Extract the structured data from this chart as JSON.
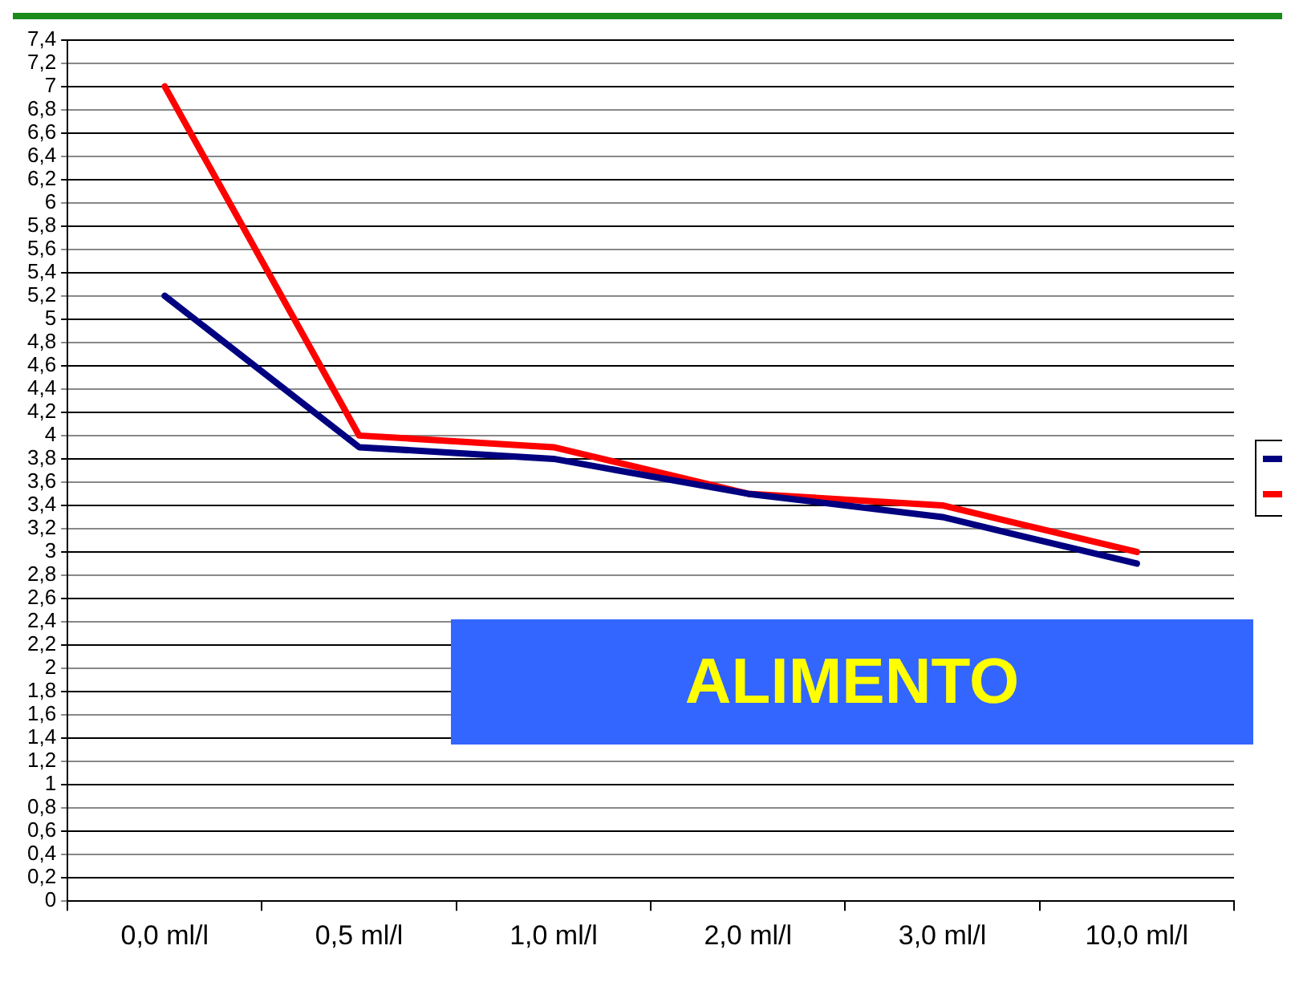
{
  "chart_data": {
    "type": "line",
    "categories": [
      "0,0 ml/l",
      "0,5 ml/l",
      "1,0 ml/l",
      "2,0 ml/l",
      "3,0 ml/l",
      "10,0 ml/l"
    ],
    "series": [
      {
        "color": "#000080",
        "values": [
          5.2,
          3.9,
          3.8,
          3.5,
          3.3,
          2.9
        ]
      },
      {
        "color": "#ff0000",
        "values": [
          7.0,
          4.0,
          3.9,
          3.5,
          3.4,
          3.0
        ]
      }
    ],
    "ylim": [
      0,
      7.4
    ],
    "yticks": [
      0,
      {
        "value": 0.2,
        "label": "0,2"
      },
      {
        "value": 0.4,
        "label": "0,4"
      },
      {
        "value": 0.6,
        "label": "0,6"
      },
      {
        "value": 0.8,
        "label": "0,8"
      },
      1,
      {
        "value": 1.2,
        "label": "1,2"
      },
      {
        "value": 1.4,
        "label": "1,4"
      },
      {
        "value": 1.6,
        "label": "1,6"
      },
      {
        "value": 1.8,
        "label": "1,8"
      },
      2,
      {
        "value": 2.2,
        "label": "2,2"
      },
      {
        "value": 2.4,
        "label": "2,4"
      },
      {
        "value": 2.6,
        "label": "2,6"
      },
      {
        "value": 2.8,
        "label": "2,8"
      },
      3,
      {
        "value": 3.2,
        "label": "3,2"
      },
      {
        "value": 3.4,
        "label": "3,4"
      },
      {
        "value": 3.6,
        "label": "3,6"
      },
      {
        "value": 3.8,
        "label": "3,8"
      },
      4,
      {
        "value": 4.2,
        "label": "4,2"
      },
      {
        "value": 4.4,
        "label": "4,4"
      },
      {
        "value": 4.6,
        "label": "4,6"
      },
      {
        "value": 4.8,
        "label": "4,8"
      },
      5,
      {
        "value": 5.2,
        "label": "5,2"
      },
      {
        "value": 5.4,
        "label": "5,4"
      },
      {
        "value": 5.6,
        "label": "5,6"
      },
      {
        "value": 5.8,
        "label": "5,8"
      },
      6,
      {
        "value": 6.2,
        "label": "6,2"
      },
      {
        "value": 6.4,
        "label": "6,4"
      },
      {
        "value": 6.6,
        "label": "6,6"
      },
      {
        "value": 6.8,
        "label": "6,8"
      },
      7,
      {
        "value": 7.2,
        "label": "7,2"
      },
      {
        "value": 7.4,
        "label": "7,4"
      }
    ],
    "grid": "y",
    "marker": "none",
    "line_style": "solid",
    "annotations": [
      "ALIMENTO"
    ]
  }
}
